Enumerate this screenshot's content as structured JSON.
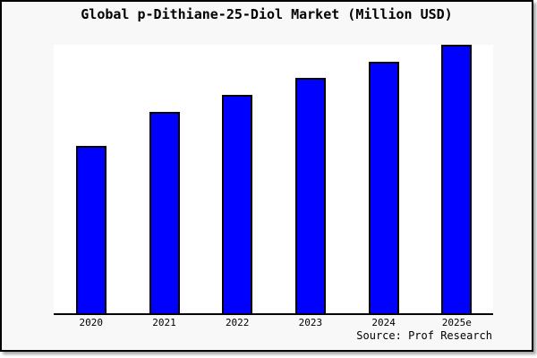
{
  "title": "Global p-Dithiane-25-Diol Market (Million USD)",
  "source": "Source: Prof Research",
  "colors": {
    "frame_background": "#f8f8f8",
    "plot_background": "#ffffff",
    "frame_border": "#000000",
    "axis": "#000000",
    "text": "#000000",
    "bar_fill": "#0000ff",
    "bar_border": "#000000"
  },
  "chart_data": {
    "type": "bar",
    "title": "Global p-Dithiane-25-Diol Market (Million USD)",
    "categories": [
      "2020",
      "2021",
      "2022",
      "2023",
      "2024",
      "2025e"
    ],
    "values": [
      62.4,
      75.1,
      81.4,
      87.7,
      93.7,
      100
    ],
    "values_note": "No y-axis ticks or value labels are shown in the image; values are estimated bar heights as a percentage of the tallest bar (2025e = 100).",
    "xlabel": "",
    "ylabel": "",
    "ylim": [
      0,
      100
    ],
    "grid": false,
    "legend": false,
    "bar_color": "#0000ff",
    "bar_border_color": "#000000",
    "annotations": [
      "Source: Prof Research"
    ]
  }
}
